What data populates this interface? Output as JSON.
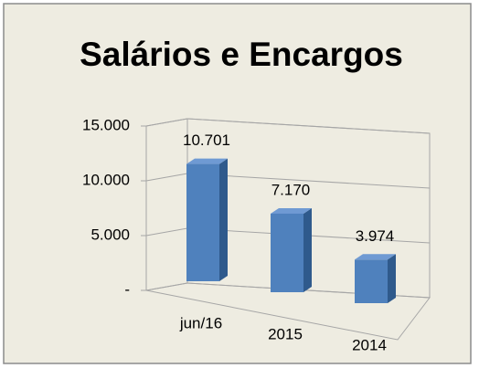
{
  "chart_data": {
    "type": "bar3d",
    "title": "Salários e Encargos",
    "categories": [
      "jun/16",
      "2015",
      "2014"
    ],
    "values": [
      10701,
      7170,
      3974
    ],
    "value_labels": [
      "10.701",
      "7.170",
      "3.974"
    ],
    "color": "#4f81bd",
    "ylim": [
      0,
      15000
    ],
    "yticks": [
      {
        "value": 0,
        "label": "-"
      },
      {
        "value": 5000,
        "label": "5.000"
      },
      {
        "value": 10000,
        "label": "10.000"
      },
      {
        "value": 15000,
        "label": "15.000"
      }
    ],
    "grid": true
  }
}
